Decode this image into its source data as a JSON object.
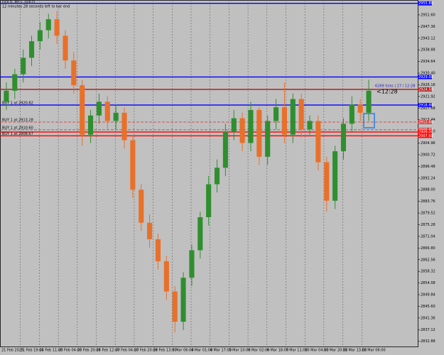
{
  "chart_data": {
    "type": "candlestick",
    "title": "GOLD, M15, GOLD",
    "subtitle": "12 minutes 28 seconds left to bar end",
    "annotations": [
      "6269 ticks | 27 / 12:28",
      "<12:28"
    ],
    "x_labels": [
      "21 Feb 2025",
      "21 Feb 19:00",
      "24 Feb 11:00",
      "25 Feb 04:00",
      "25 Feb 20:00",
      "26 Feb 12:00",
      "27 Feb 04:00",
      "27 Feb 20:00",
      "28 Feb 13:00",
      "3 Mar 06:00",
      "4 Mar 01:00",
      "4 Mar 17:00",
      "5 Mar 10:00",
      "6 Mar 02:00",
      "6 Mar 18:00",
      "7 Mar 11:00",
      "10 Mar 04:00",
      "10 Mar 20:00",
      "11 Mar 13:00",
      "12 Mar 06:00"
    ],
    "open": [
      2920,
      2924,
      2930,
      2936,
      2942,
      2946,
      2950,
      2944,
      2935,
      2926,
      2908,
      2915,
      2920,
      2913,
      2916,
      2906,
      2888,
      2876,
      2870,
      2862,
      2851,
      2840,
      2856,
      2866,
      2878,
      2890,
      2896,
      2909,
      2914,
      2905,
      2917,
      2900,
      2913,
      2918,
      2908,
      2921,
      2910,
      2913,
      2898,
      2884,
      2902,
      2912,
      2919,
      2916
    ],
    "high": [
      2927,
      2932,
      2939,
      2944,
      2949,
      2952,
      2953,
      2946,
      2938,
      2928,
      2917,
      2923,
      2922,
      2919,
      2918,
      2908,
      2890,
      2879,
      2872,
      2864,
      2853,
      2858,
      2868,
      2880,
      2893,
      2899,
      2912,
      2917,
      2916,
      2920,
      2918,
      2915,
      2921,
      2927,
      2923,
      2923,
      2915,
      2915,
      2900,
      2904,
      2914,
      2922,
      2921,
      2928
    ],
    "low": [
      2917,
      2921,
      2927,
      2933,
      2939,
      2943,
      2941,
      2932,
      2923,
      2904,
      2905,
      2912,
      2910,
      2910,
      2903,
      2885,
      2873,
      2867,
      2859,
      2848,
      2836,
      2837,
      2853,
      2863,
      2875,
      2887,
      2893,
      2906,
      2902,
      2902,
      2897,
      2897,
      2910,
      2905,
      2905,
      2907,
      2908,
      2895,
      2880,
      2881,
      2899,
      2909,
      2913,
      2913
    ],
    "close": [
      2924,
      2930,
      2936,
      2942,
      2946,
      2950,
      2944,
      2935,
      2926,
      2908,
      2915,
      2920,
      2913,
      2916,
      2906,
      2888,
      2876,
      2870,
      2862,
      2851,
      2840,
      2856,
      2866,
      2878,
      2890,
      2896,
      2909,
      2914,
      2905,
      2917,
      2900,
      2913,
      2918,
      2908,
      2921,
      2910,
      2913,
      2898,
      2884,
      2902,
      2912,
      2919,
      2916,
      2924
    ],
    "up_color": "#2f8f2f",
    "down_color": "#e8702a",
    "ylim": [
      2831,
      2957
    ],
    "yticks": [
      {
        "value": 2951.6,
        "label": "2951.60"
      },
      {
        "value": 2947.36,
        "label": "2947.36"
      },
      {
        "value": 2943.12,
        "label": "2943.12"
      },
      {
        "value": 2938.88,
        "label": "2938.88"
      },
      {
        "value": 2934.64,
        "label": "2934.64"
      },
      {
        "value": 2930.4,
        "label": "2930.40"
      },
      {
        "value": 2926.16,
        "label": "2926.16"
      },
      {
        "value": 2921.92,
        "label": "2921.92"
      },
      {
        "value": 2917.68,
        "label": "2917.68"
      },
      {
        "value": 2913.44,
        "label": "2913.44"
      },
      {
        "value": 2909.2,
        "label": "2909.20"
      },
      {
        "value": 2904.96,
        "label": "2904.96"
      },
      {
        "value": 2900.72,
        "label": "2900.72"
      },
      {
        "value": 2896.48,
        "label": "2896.48"
      },
      {
        "value": 2892.24,
        "label": "2892.24"
      },
      {
        "value": 2888,
        "label": "2888.00"
      },
      {
        "value": 2883.76,
        "label": "2883.76"
      },
      {
        "value": 2879.52,
        "label": "2879.52"
      },
      {
        "value": 2875.28,
        "label": "2875.28"
      },
      {
        "value": 2871.04,
        "label": "2871.04"
      },
      {
        "value": 2866.8,
        "label": "2866.80"
      },
      {
        "value": 2862.56,
        "label": "2862.56"
      },
      {
        "value": 2858.32,
        "label": "2858.32"
      },
      {
        "value": 2854.08,
        "label": "2854.08"
      },
      {
        "value": 2849.84,
        "label": "2849.84"
      },
      {
        "value": 2845.6,
        "label": "2845.60"
      },
      {
        "value": 2841.36,
        "label": "2841.36"
      },
      {
        "value": 2837.12,
        "label": "2837.12"
      },
      {
        "value": 2832.88,
        "label": "2832.88"
      }
    ],
    "levels": [
      {
        "value": 2955.8,
        "label": "2955.80",
        "color": "#0000ff",
        "style": "solid"
      },
      {
        "value": 2929,
        "label": "2929.00",
        "color": "#0000ff",
        "style": "solid"
      },
      {
        "value": 2924.5,
        "label": "2924.50",
        "color": "#b22222",
        "style": "solid"
      },
      {
        "value": 2918.8,
        "label": "2918.80",
        "color": "#0000ff",
        "style": "solid",
        "text": "BUY 1 at 2920.82"
      },
      {
        "value": 2912.6,
        "label": "2912.60",
        "color": "#d04040",
        "style": "dashed",
        "text": "BUY 1 at 2913.28"
      },
      {
        "value": 2909.8,
        "label": "2909.80",
        "color": "#d04040",
        "style": "dashed",
        "text": "BUY 1 at 2910.60"
      },
      {
        "value": 2909,
        "label": "2909.00",
        "color": "#ff0000",
        "style": "solid"
      },
      {
        "value": 2907.6,
        "label": "2907.60",
        "color": "#ff0000",
        "style": "solid",
        "text": "BUY 1 at 2908.67"
      }
    ]
  }
}
